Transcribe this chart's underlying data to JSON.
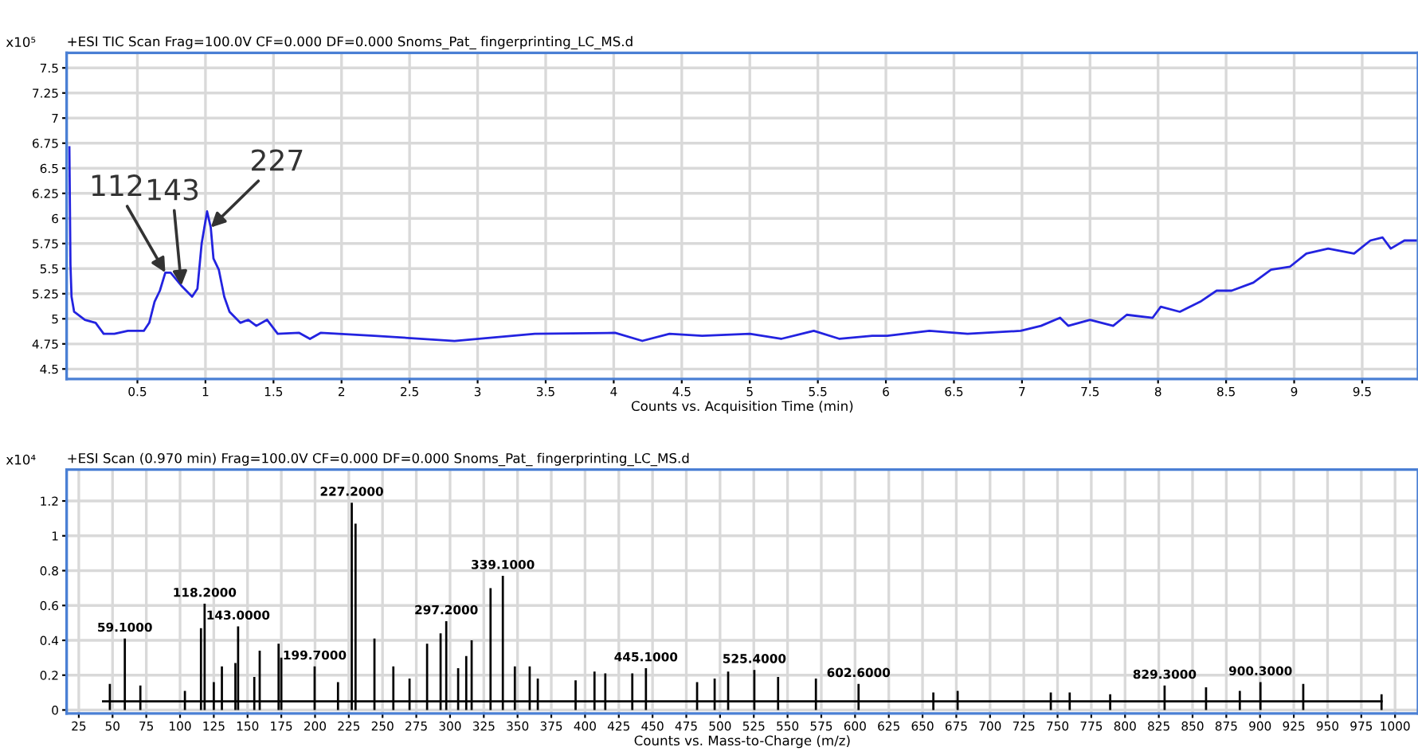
{
  "chart_data": [
    {
      "type": "line",
      "title": "+ESI TIC Scan Frag=100.0V CF=0.000 DF=0.000 Snoms_Pat_ fingerprinting_LC_MS.d",
      "ylabel": "x10⁵",
      "xlabel": "Counts vs. Acquisition Time (min)",
      "series": [
        {
          "color": "#2323e0",
          "x": [
            0,
            0.008,
            0.016,
            0.035,
            0.114,
            0.193,
            0.252,
            0.331,
            0.43,
            0.547,
            0.587,
            0.626,
            0.665,
            0.705,
            0.744,
            0.823,
            0.902,
            0.941,
            0.972,
            1.012,
            1.039,
            1.059,
            1.098,
            1.138,
            1.177,
            1.256,
            1.315,
            1.374,
            1.453,
            1.531,
            1.689,
            1.768,
            1.846,
            2.24,
            2.83,
            3.42,
            4.01,
            4.21,
            4.41,
            4.65,
            5.0,
            5.23,
            5.47,
            5.66,
            5.9,
            6.01,
            6.32,
            6.6,
            6.99,
            7.14,
            7.28,
            7.34,
            7.5,
            7.67,
            7.77,
            7.96,
            8.02,
            8.16,
            8.31,
            8.43,
            8.54,
            8.7,
            8.83,
            8.97,
            9.09,
            9.25,
            9.44,
            9.56,
            9.65,
            9.71,
            9.81,
            9.91
          ],
          "values": [
            6.71,
            5.54,
            5.22,
            5.07,
            4.99,
            4.96,
            4.85,
            4.85,
            4.88,
            4.88,
            4.96,
            5.17,
            5.28,
            5.46,
            5.46,
            5.33,
            5.22,
            5.3,
            5.75,
            6.07,
            5.91,
            5.6,
            5.49,
            5.22,
            5.07,
            4.96,
            4.99,
            4.93,
            4.99,
            4.85,
            4.86,
            4.8,
            4.86,
            4.83,
            4.78,
            4.85,
            4.86,
            4.78,
            4.85,
            4.83,
            4.85,
            4.8,
            4.88,
            4.8,
            4.83,
            4.83,
            4.88,
            4.85,
            4.88,
            4.93,
            5.01,
            4.93,
            4.99,
            4.93,
            5.04,
            5.01,
            5.12,
            5.07,
            5.17,
            5.28,
            5.28,
            5.36,
            5.49,
            5.52,
            5.65,
            5.7,
            5.65,
            5.78,
            5.81,
            5.7,
            5.78,
            5.78
          ]
        }
      ],
      "annotations": [
        {
          "text": "112",
          "x": 0.705,
          "y": 5.46
        },
        {
          "text": "143",
          "x": 0.823,
          "y": 5.33
        },
        {
          "text": "227",
          "x": 1.039,
          "y": 5.91
        }
      ],
      "xlim": [
        -0.02,
        9.91
      ],
      "ylim": [
        4.4,
        7.65
      ],
      "xticks": [
        0.5,
        1,
        1.5,
        2,
        2.5,
        3,
        3.5,
        4,
        4.5,
        5,
        5.5,
        6,
        6.5,
        7,
        7.5,
        8,
        8.5,
        9,
        9.5
      ],
      "yticks": [
        4.5,
        4.75,
        5,
        5.25,
        5.5,
        5.75,
        6,
        6.25,
        6.5,
        6.75,
        7,
        7.25,
        7.5
      ],
      "grid": true,
      "marker": "none",
      "line_style": "solid"
    },
    {
      "type": "bar",
      "title": "+ESI Scan (0.970 min) Frag=100.0V CF=0.000 DF=0.000 Snoms_Pat_ fingerprinting_LC_MS.d",
      "ylabel": "x10⁴",
      "xlabel": "Counts vs. Mass-to-Charge (m/z)",
      "series": [
        {
          "color": "#000000",
          "x": [
            48,
            59.1,
            70.6,
            103.6,
            115.5,
            118.2,
            125,
            131,
            141,
            143,
            155,
            159,
            173,
            175,
            199.7,
            217,
            227.2,
            230,
            244,
            258,
            270,
            283,
            293,
            297.2,
            306,
            312,
            316,
            330,
            339.1,
            348,
            359,
            365,
            393,
            407,
            415,
            435,
            445.1,
            483,
            496,
            506,
            525.4,
            543,
            571,
            602.6,
            658,
            676,
            745,
            759,
            789,
            829.3,
            860,
            885,
            900.3,
            932,
            990
          ],
          "values": [
            0.15,
            0.41,
            0.14,
            0.11,
            0.47,
            0.61,
            0.16,
            0.25,
            0.27,
            0.48,
            0.19,
            0.34,
            0.38,
            0.3,
            0.25,
            0.16,
            1.19,
            1.07,
            0.41,
            0.25,
            0.18,
            0.38,
            0.44,
            0.51,
            0.24,
            0.31,
            0.4,
            0.7,
            0.77,
            0.25,
            0.25,
            0.18,
            0.17,
            0.22,
            0.21,
            0.21,
            0.24,
            0.16,
            0.18,
            0.22,
            0.23,
            0.19,
            0.18,
            0.15,
            0.1,
            0.11,
            0.1,
            0.1,
            0.09,
            0.14,
            0.13,
            0.11,
            0.16,
            0.15,
            0.09
          ]
        },
        {
          "type": "line",
          "color": "#000000",
          "x": [
            43,
            990
          ],
          "values": [
            0.05,
            0.05
          ]
        }
      ],
      "annotations": [
        {
          "text": "59.1000",
          "x": 59.1,
          "y": 0.41
        },
        {
          "text": "118.2000",
          "x": 118.2,
          "y": 0.61
        },
        {
          "text": "143.0000",
          "x": 143,
          "y": 0.48
        },
        {
          "text": "199.7000",
          "x": 199.7,
          "y": 0.25
        },
        {
          "text": "227.2000",
          "x": 227.2,
          "y": 1.19
        },
        {
          "text": "297.2000",
          "x": 297.2,
          "y": 0.51
        },
        {
          "text": "339.1000",
          "x": 339.1,
          "y": 0.77
        },
        {
          "text": "445.1000",
          "x": 445.1,
          "y": 0.24
        },
        {
          "text": "525.4000",
          "x": 525.4,
          "y": 0.23
        },
        {
          "text": "602.6000",
          "x": 602.6,
          "y": 0.15
        },
        {
          "text": "829.3000",
          "x": 829.3,
          "y": 0.14
        },
        {
          "text": "900.3000",
          "x": 900.3,
          "y": 0.16
        }
      ],
      "xlim": [
        16,
        1017
      ],
      "ylim": [
        -0.02,
        1.38
      ],
      "xticks": [
        25,
        50,
        75,
        100,
        125,
        150,
        175,
        200,
        225,
        250,
        275,
        300,
        325,
        350,
        375,
        400,
        425,
        450,
        475,
        500,
        525,
        550,
        575,
        600,
        625,
        650,
        675,
        700,
        725,
        750,
        775,
        800,
        825,
        850,
        875,
        900,
        925,
        950,
        975,
        1000
      ],
      "yticks": [
        0,
        0.2,
        0.4,
        0.6,
        0.8,
        1,
        1.2
      ],
      "grid": true
    }
  ]
}
